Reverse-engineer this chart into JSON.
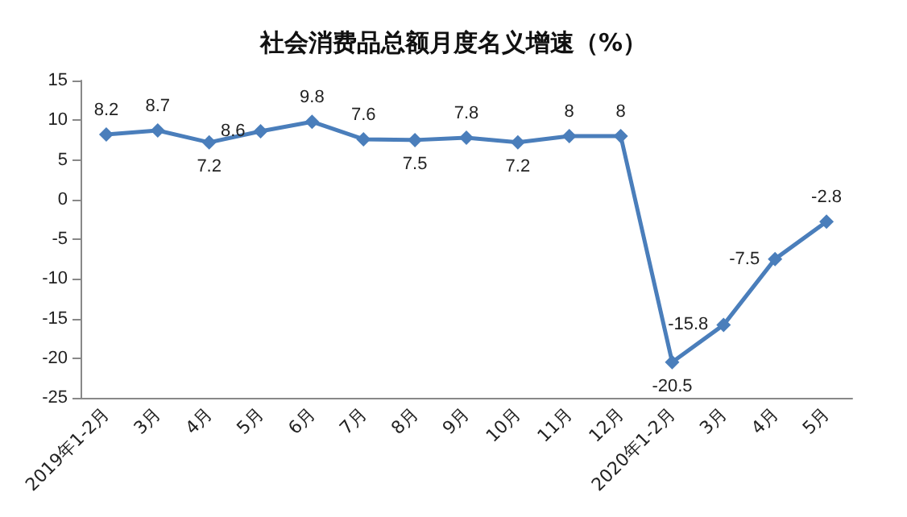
{
  "chart_data": {
    "type": "line",
    "title": "社会消费品总额月度名义增速（%）",
    "categories": [
      "2019年1-2月",
      "3月",
      "4月",
      "5月",
      "6月",
      "7月",
      "8月",
      "9月",
      "10月",
      "11月",
      "12月",
      "2020年1-2月",
      "3月",
      "4月",
      "5月"
    ],
    "series": [
      {
        "color": "#4a7ebb",
        "values": [
          8.2,
          8.7,
          7.2,
          8.6,
          9.8,
          7.6,
          7.5,
          7.8,
          7.2,
          8,
          8,
          -20.5,
          -15.8,
          -7.5,
          -2.8
        ]
      }
    ],
    "ylim": [
      -25,
      15
    ],
    "yticks": [
      -25,
      -20,
      -15,
      -10,
      -5,
      0,
      5,
      10,
      15
    ],
    "grid": false,
    "marker": "diamond",
    "line_style": "solid",
    "data_labels": true
  }
}
